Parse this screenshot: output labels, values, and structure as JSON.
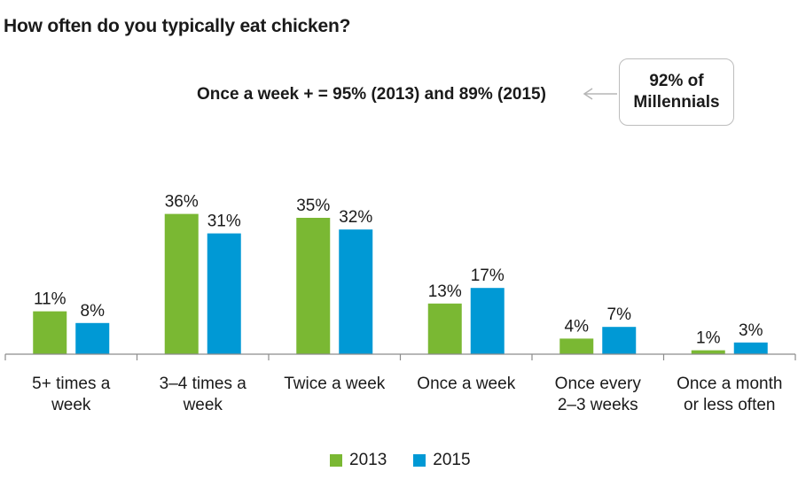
{
  "title": "How often do you typically eat chicken?",
  "annotation": "Once a week + = 95% (2013) and 89% (2015)",
  "callout": "92% of\nMillennials",
  "colors": {
    "2013": "#7ab833",
    "2015": "#0099d5",
    "axis": "#8c8c8c",
    "arrow": "#b5b5b5"
  },
  "chart_data": {
    "type": "bar",
    "title": "How often do you typically eat chicken?",
    "categories": [
      [
        "5+ times a",
        "week"
      ],
      [
        "3–4 times a",
        "week"
      ],
      [
        "Twice a week"
      ],
      [
        "Once a week"
      ],
      [
        "Once every",
        "2–3 weeks"
      ],
      [
        "Once a month",
        "or less often"
      ]
    ],
    "series": [
      {
        "name": "2013",
        "values": [
          11,
          36,
          35,
          13,
          4,
          1
        ],
        "labels": [
          "11%",
          "36%",
          "35%",
          "13%",
          "4%",
          "1%"
        ]
      },
      {
        "name": "2015",
        "values": [
          8,
          31,
          32,
          17,
          7,
          3
        ],
        "labels": [
          "8%",
          "31%",
          "32%",
          "17%",
          "7%",
          "3%"
        ]
      }
    ],
    "unit": "%",
    "ylim": [
      0,
      40
    ],
    "grid": false,
    "legend_position": "bottom"
  }
}
